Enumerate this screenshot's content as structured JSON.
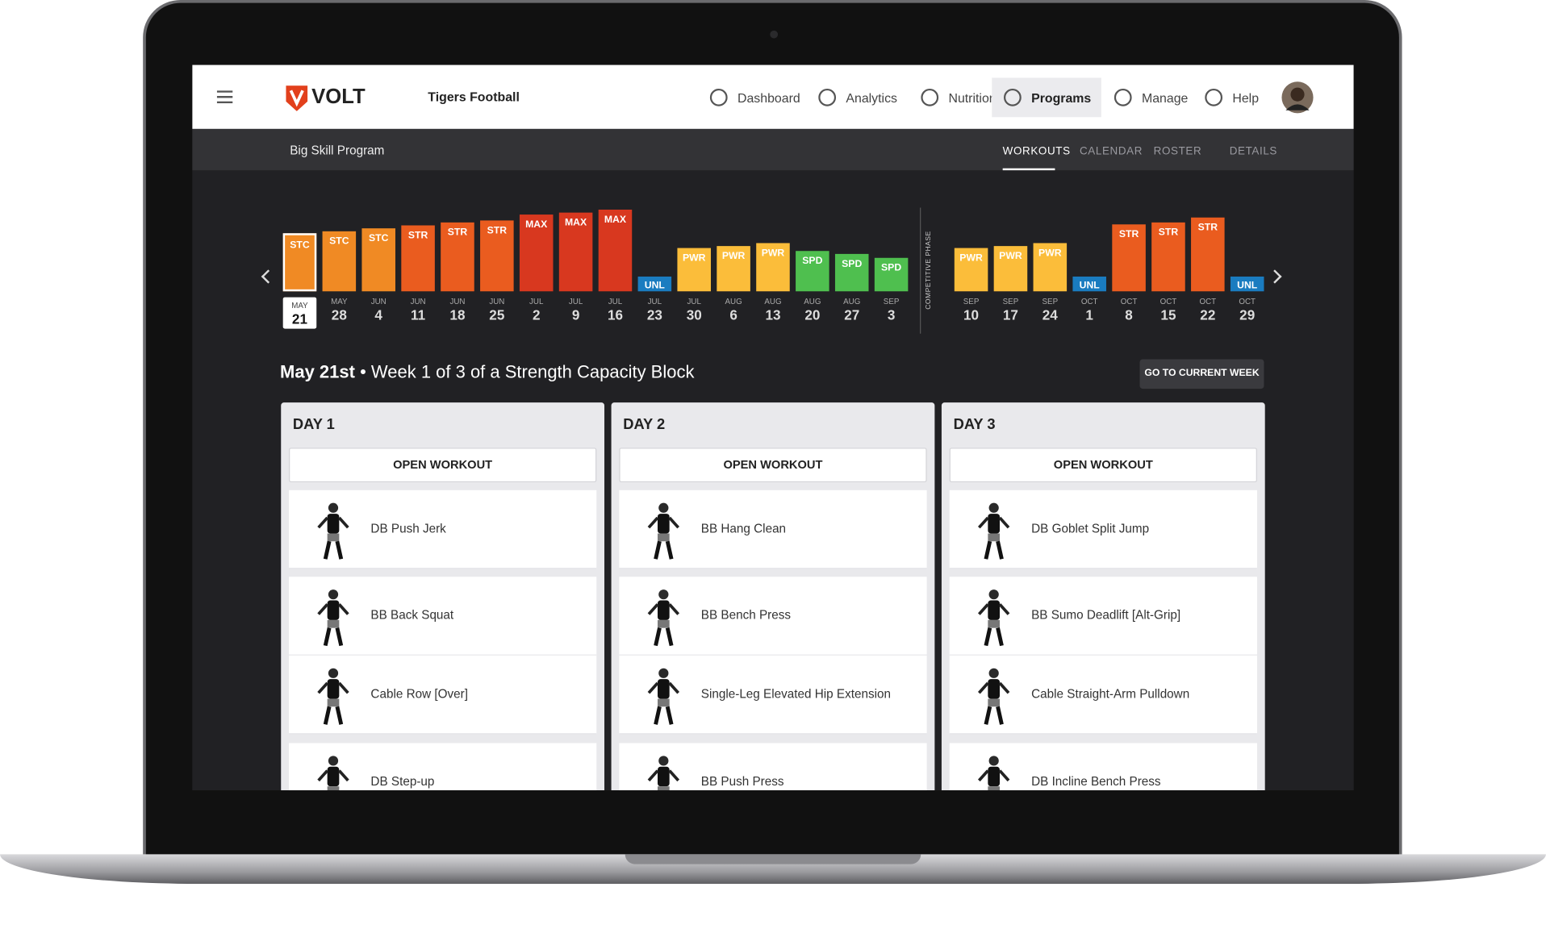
{
  "header": {
    "logo": "VOLT",
    "team": "Tigers Football",
    "nav": [
      "Dashboard",
      "Analytics",
      "Nutrition",
      "Programs",
      "Manage",
      "Help"
    ]
  },
  "subnav": {
    "program": "Big Skill Program",
    "tabs": [
      "WORKOUTS",
      "CALENDAR",
      "ROSTER",
      "DETAILS"
    ]
  },
  "timeline": {
    "phase_label": "COMPETITIVE PHASE",
    "weeks": [
      {
        "label": "STC",
        "month": "MAY",
        "day": "21"
      },
      {
        "label": "STC",
        "month": "MAY",
        "day": "28"
      },
      {
        "label": "STC",
        "month": "JUN",
        "day": "4"
      },
      {
        "label": "STR",
        "month": "JUN",
        "day": "11"
      },
      {
        "label": "STR",
        "month": "JUN",
        "day": "18"
      },
      {
        "label": "STR",
        "month": "JUN",
        "day": "25"
      },
      {
        "label": "MAX",
        "month": "JUL",
        "day": "2"
      },
      {
        "label": "MAX",
        "month": "JUL",
        "day": "9"
      },
      {
        "label": "MAX",
        "month": "JUL",
        "day": "16"
      },
      {
        "label": "UNL",
        "month": "JUL",
        "day": "23"
      },
      {
        "label": "PWR",
        "month": "JUL",
        "day": "30"
      },
      {
        "label": "PWR",
        "month": "AUG",
        "day": "6"
      },
      {
        "label": "PWR",
        "month": "AUG",
        "day": "13"
      },
      {
        "label": "SPD",
        "month": "AUG",
        "day": "20"
      },
      {
        "label": "SPD",
        "month": "AUG",
        "day": "27"
      },
      {
        "label": "SPD",
        "month": "SEP",
        "day": "3"
      },
      {
        "label": "PWR",
        "month": "SEP",
        "day": "10"
      },
      {
        "label": "PWR",
        "month": "SEP",
        "day": "17"
      },
      {
        "label": "PWR",
        "month": "SEP",
        "day": "24"
      },
      {
        "label": "UNL",
        "month": "OCT",
        "day": "1"
      },
      {
        "label": "STR",
        "month": "OCT",
        "day": "8"
      },
      {
        "label": "STR",
        "month": "OCT",
        "day": "15"
      },
      {
        "label": "STR",
        "month": "OCT",
        "day": "22"
      },
      {
        "label": "UNL",
        "month": "OCT",
        "day": "29"
      }
    ]
  },
  "week_heading": {
    "date": "May 21st",
    "text": "• Week 1 of 3 of a Strength Capacity Block",
    "button": "GO TO CURRENT WEEK"
  },
  "days": [
    {
      "title": "DAY 1",
      "button": "OPEN WORKOUT",
      "exercises": [
        "DB Push Jerk",
        "BB Back Squat",
        "Cable Row [Over]",
        "DB Step-up"
      ]
    },
    {
      "title": "DAY 2",
      "button": "OPEN WORKOUT",
      "exercises": [
        "BB Hang Clean",
        "BB Bench Press",
        "Single-Leg Elevated Hip Extension",
        "BB Push Press"
      ]
    },
    {
      "title": "DAY 3",
      "button": "OPEN WORKOUT",
      "exercises": [
        "DB Goblet Split Jump",
        "BB Sumo Deadlift [Alt-Grip]",
        "Cable Straight-Arm Pulldown",
        "DB Incline Bench Press"
      ]
    }
  ]
}
